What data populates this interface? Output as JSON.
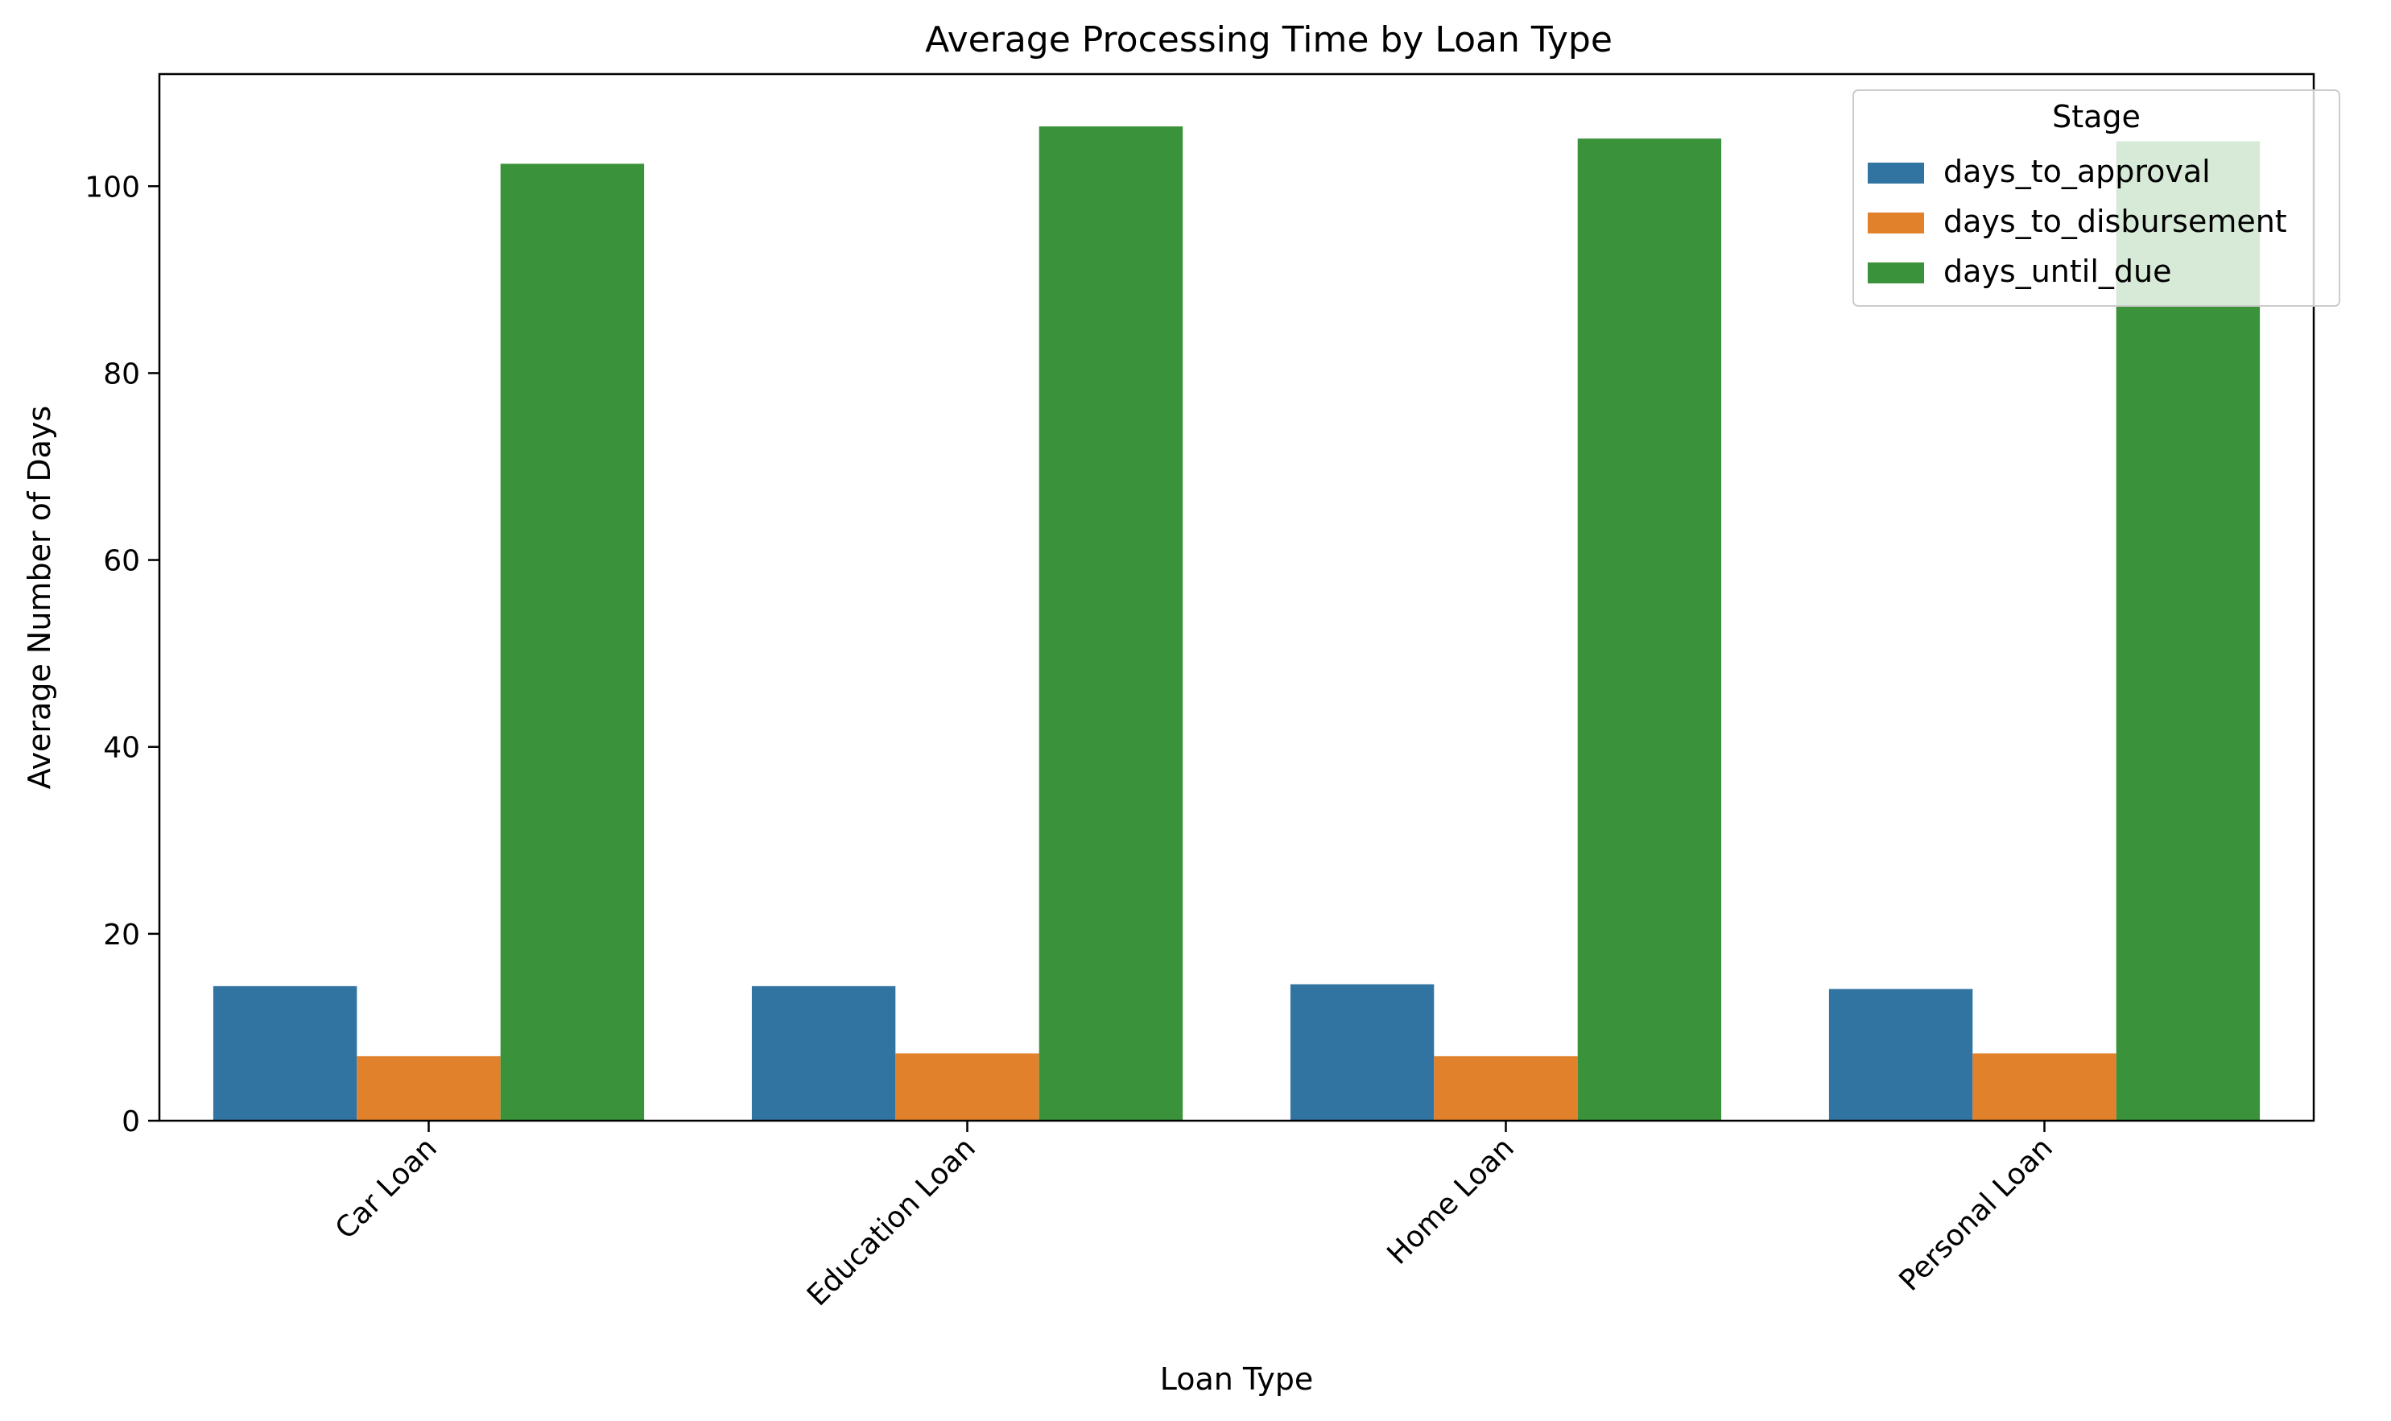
{
  "chart_data": {
    "type": "bar",
    "title": "Average Processing Time by Loan Type",
    "xlabel": "Loan Type",
    "ylabel": "Average Number of Days",
    "categories": [
      "Car Loan",
      "Education Loan",
      "Home Loan",
      "Personal Loan"
    ],
    "ylim": [
      0,
      112
    ],
    "yticks": [
      "0",
      "20",
      "40",
      "60",
      "80",
      "100"
    ],
    "grid": false,
    "legend": {
      "title": "Stage",
      "placement": "top-right"
    },
    "series": [
      {
        "name": "days_to_approval",
        "color": "#3274a1",
        "values": [
          14.4,
          14.4,
          14.6,
          14.1
        ]
      },
      {
        "name": "days_to_disbursement",
        "color": "#e1812c",
        "values": [
          6.9,
          7.2,
          6.9,
          7.2
        ]
      },
      {
        "name": "days_until_due",
        "color": "#3a923a",
        "values": [
          102.4,
          106.4,
          105.1,
          104.8
        ]
      }
    ]
  }
}
